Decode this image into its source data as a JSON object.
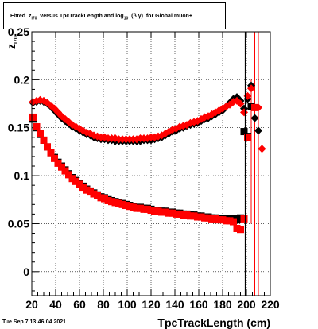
{
  "title": {
    "prefix": "Fitted",
    "z_main": "z",
    "z_sub": "I70",
    "middle": "versus TpcTrackLength and log",
    "log_sub": "10",
    "beta_gamma": "(β γ)",
    "suffix": "for Global muon+"
  },
  "timestamp": "Tue Sep  7 13:46:04 2021",
  "chart_data": {
    "type": "scatter",
    "xlabel": "TpcTrackLength (cm)",
    "ylabel": "z",
    "ylabel_sub": "I70",
    "xlim": [
      20,
      220
    ],
    "ylim": [
      -0.025,
      0.25
    ],
    "xticks": [
      20,
      40,
      60,
      80,
      100,
      120,
      140,
      160,
      180,
      200,
      220
    ],
    "yticks": [
      0,
      0.05,
      0.1,
      0.15,
      0.2,
      0.25
    ],
    "ytick_labels": [
      "0",
      "0.05",
      "0.1",
      "0.15",
      "0.2",
      "0.25"
    ],
    "grid": true,
    "vline_x": 199,
    "series": [
      {
        "marker": "diamond",
        "color": "#000000",
        "x": [
          21,
          24,
          27,
          30,
          33,
          36,
          39,
          42,
          45,
          48,
          51,
          54,
          57,
          60,
          63,
          66,
          69,
          72,
          75,
          78,
          81,
          84,
          87,
          90,
          93,
          96,
          99,
          102,
          105,
          108,
          111,
          114,
          117,
          120,
          123,
          126,
          129,
          132,
          135,
          138,
          141,
          144,
          147,
          150,
          153,
          156,
          159,
          162,
          165,
          168,
          171,
          174,
          177,
          180,
          183,
          186,
          189,
          192,
          195,
          198,
          201,
          204,
          207,
          210,
          213
        ],
        "y": [
          0.176,
          0.177,
          0.178,
          0.177,
          0.175,
          0.172,
          0.168,
          0.164,
          0.16,
          0.157,
          0.154,
          0.151,
          0.149,
          0.147,
          0.145,
          0.143,
          0.142,
          0.14,
          0.139,
          0.138,
          0.138,
          0.137,
          0.137,
          0.136,
          0.136,
          0.136,
          0.136,
          0.136,
          0.136,
          0.136,
          0.136,
          0.137,
          0.137,
          0.137,
          0.138,
          0.139,
          0.14,
          0.142,
          0.144,
          0.146,
          0.147,
          0.149,
          0.15,
          0.152,
          0.153,
          0.154,
          0.155,
          0.157,
          0.159,
          0.16,
          0.162,
          0.164,
          0.166,
          0.168,
          0.172,
          0.176,
          0.18,
          0.182,
          0.178,
          0.17,
          0.18,
          0.194,
          0.16,
          0.147,
          null
        ]
      },
      {
        "marker": "diamond",
        "color": "#ff0000",
        "x": [
          21,
          24,
          27,
          30,
          33,
          36,
          39,
          42,
          45,
          48,
          51,
          54,
          57,
          60,
          63,
          66,
          69,
          72,
          75,
          78,
          81,
          84,
          87,
          90,
          93,
          96,
          99,
          102,
          105,
          108,
          111,
          114,
          117,
          120,
          123,
          126,
          129,
          132,
          135,
          138,
          141,
          144,
          147,
          150,
          153,
          156,
          159,
          162,
          165,
          168,
          171,
          174,
          177,
          180,
          183,
          186,
          189,
          192,
          195,
          198,
          201,
          204,
          207,
          210,
          213
        ],
        "y": [
          0.177,
          0.178,
          0.179,
          0.178,
          0.176,
          0.173,
          0.17,
          0.166,
          0.162,
          0.159,
          0.156,
          0.153,
          0.151,
          0.149,
          0.147,
          0.145,
          0.144,
          0.142,
          0.141,
          0.14,
          0.14,
          0.139,
          0.139,
          0.139,
          0.138,
          0.138,
          0.138,
          0.138,
          0.138,
          0.138,
          0.139,
          0.139,
          0.139,
          0.14,
          0.14,
          0.141,
          0.142,
          0.144,
          0.146,
          0.148,
          0.149,
          0.151,
          0.152,
          0.153,
          0.155,
          0.156,
          0.157,
          0.159,
          0.161,
          0.162,
          0.164,
          0.166,
          0.168,
          0.17,
          0.172,
          0.174,
          0.177,
          0.178,
          0.175,
          0.166,
          0.183,
          0.191,
          0.171,
          0.171,
          0.128
        ]
      },
      {
        "marker": "square",
        "color": "#000000",
        "x": [
          21,
          24,
          27,
          30,
          33,
          36,
          39,
          42,
          45,
          48,
          51,
          54,
          57,
          60,
          63,
          66,
          69,
          72,
          75,
          78,
          81,
          84,
          87,
          90,
          93,
          96,
          99,
          102,
          105,
          108,
          111,
          114,
          117,
          120,
          123,
          126,
          129,
          132,
          135,
          138,
          141,
          144,
          147,
          150,
          153,
          156,
          159,
          162,
          165,
          168,
          171,
          174,
          177,
          180,
          183,
          186,
          189,
          192,
          195,
          198,
          201,
          204,
          207,
          210
        ],
        "y": [
          0.159,
          0.15,
          0.143,
          0.137,
          0.13,
          0.124,
          0.119,
          0.114,
          0.11,
          0.106,
          0.102,
          0.098,
          0.095,
          0.092,
          0.089,
          0.086,
          0.084,
          0.082,
          0.08,
          0.078,
          0.077,
          0.075,
          0.074,
          0.073,
          0.072,
          0.071,
          0.07,
          0.069,
          0.068,
          0.067,
          0.067,
          0.066,
          0.066,
          0.065,
          0.064,
          0.064,
          0.063,
          0.063,
          0.062,
          0.062,
          0.061,
          0.061,
          0.06,
          0.06,
          0.059,
          0.059,
          0.058,
          0.058,
          0.057,
          0.057,
          0.056,
          0.056,
          0.055,
          0.055,
          0.055,
          0.055,
          0.055,
          0.054,
          0.056,
          0.146,
          0.141,
          0.172,
          null,
          null
        ]
      },
      {
        "marker": "square",
        "color": "#ff0000",
        "x": [
          21,
          24,
          27,
          30,
          33,
          36,
          39,
          42,
          45,
          48,
          51,
          54,
          57,
          60,
          63,
          66,
          69,
          72,
          75,
          78,
          81,
          84,
          87,
          90,
          93,
          96,
          99,
          102,
          105,
          108,
          111,
          114,
          117,
          120,
          123,
          126,
          129,
          132,
          135,
          138,
          141,
          144,
          147,
          150,
          153,
          156,
          159,
          162,
          165,
          168,
          171,
          174,
          177,
          180,
          183,
          186,
          189,
          192,
          195,
          198,
          201,
          204,
          207,
          210
        ],
        "y": [
          0.161,
          0.151,
          0.144,
          0.137,
          0.13,
          0.124,
          0.118,
          0.113,
          0.109,
          0.105,
          0.101,
          0.097,
          0.094,
          0.091,
          0.088,
          0.085,
          0.083,
          0.081,
          0.079,
          0.077,
          0.076,
          0.074,
          0.073,
          0.072,
          0.071,
          0.07,
          0.069,
          0.068,
          0.067,
          0.066,
          0.066,
          0.065,
          0.065,
          0.064,
          0.063,
          0.063,
          0.062,
          0.062,
          0.061,
          0.061,
          0.06,
          0.06,
          0.059,
          0.059,
          0.058,
          0.058,
          0.057,
          0.057,
          0.056,
          0.056,
          0.055,
          0.055,
          0.054,
          0.054,
          0.053,
          0.053,
          0.052,
          0.045,
          0.044,
          0.055,
          0.14,
          null,
          0.171,
          null
        ]
      }
    ],
    "error_bars": [
      {
        "x": 204,
        "y_low": 0.05,
        "y_high": 0.2
      },
      {
        "x": 207,
        "y_low": -0.025,
        "y_high": 0.25
      },
      {
        "x": 210,
        "y_low": -0.025,
        "y_high": 0.25
      },
      {
        "x": 213,
        "y_low": 0.0,
        "y_high": 0.25
      }
    ]
  }
}
